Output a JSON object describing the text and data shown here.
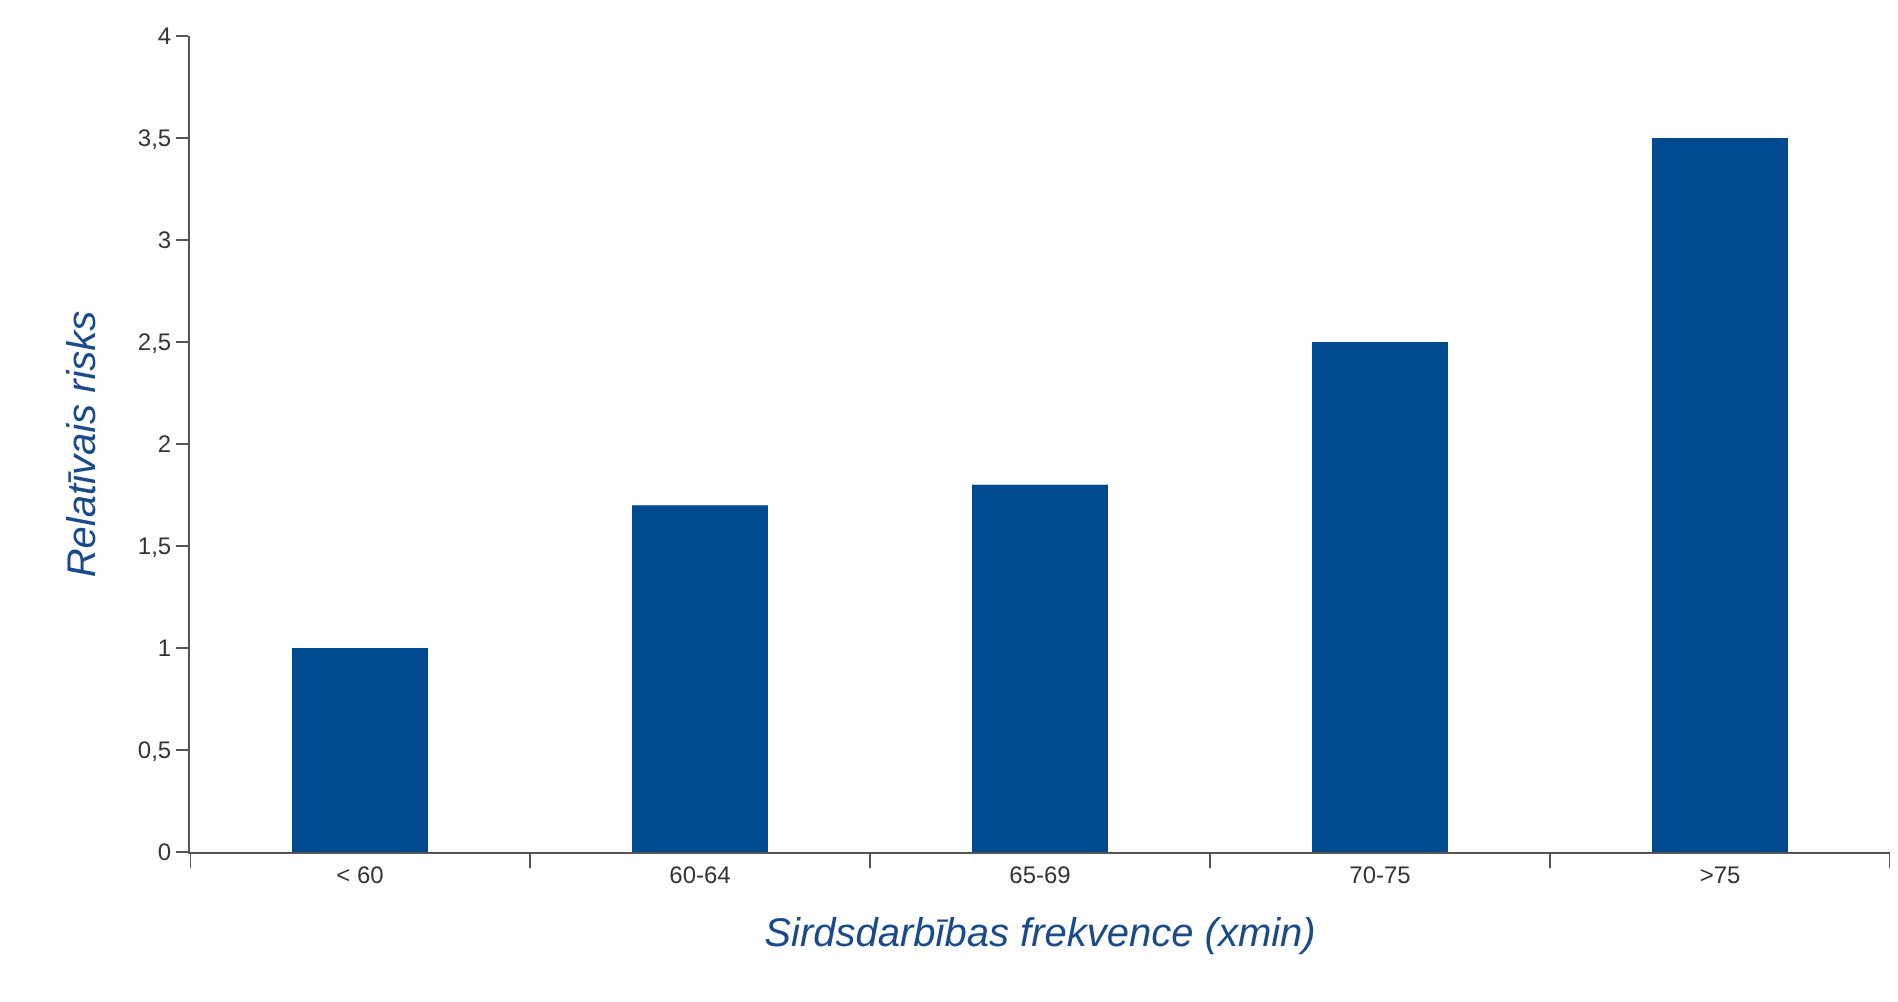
{
  "chart_data": {
    "type": "bar",
    "xlabel": "Sirdsdarbības frekvence (xmin)",
    "ylabel": "Relatīvais risks",
    "categories": [
      "< 60",
      "60-64",
      "65-69",
      "70-75",
      ">75"
    ],
    "values": [
      1,
      1.7,
      1.8,
      2.5,
      3.5
    ],
    "color": "#004a8f",
    "ylim": [
      0,
      4
    ],
    "yticks": [
      0,
      {
        "value": 0.5,
        "label": "0,5"
      },
      1,
      {
        "value": 1.5,
        "label": "1,5"
      },
      2,
      {
        "value": 2.5,
        "label": "2,5"
      },
      3,
      {
        "value": 3.5,
        "label": "3,5"
      },
      4
    ],
    "legend": false
  }
}
